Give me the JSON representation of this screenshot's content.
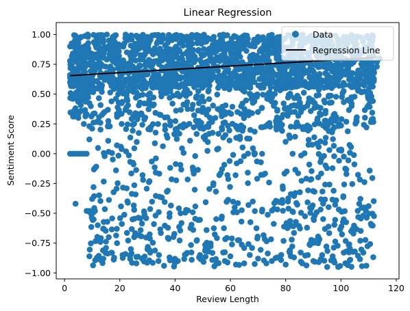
{
  "chart_data": {
    "type": "scatter",
    "title": "Linear Regression",
    "xlabel": "Review Length",
    "ylabel": "Sentiment Score",
    "xlim": [
      -3,
      121
    ],
    "ylim": [
      -1.05,
      1.1
    ],
    "xticks": [
      0,
      20,
      40,
      60,
      80,
      100,
      120
    ],
    "xtick_labels": [
      "0",
      "20",
      "40",
      "60",
      "80",
      "100",
      "120"
    ],
    "yticks": [
      -1.0,
      -0.75,
      -0.5,
      -0.25,
      0.0,
      0.25,
      0.5,
      0.75,
      1.0
    ],
    "ytick_labels": [
      "−1.00",
      "−0.75",
      "−0.50",
      "−0.25",
      "0.00",
      "0.25",
      "0.50",
      "0.75",
      "1.00"
    ],
    "grid": false,
    "legend_position": "top-right",
    "series": [
      {
        "name": "Data",
        "kind": "scatter",
        "color": "#1f77b4",
        "points": [
          [
            2,
            0.0
          ],
          [
            3,
            0.0
          ],
          [
            4,
            0.0
          ],
          [
            5,
            0.0
          ],
          [
            6,
            0.0
          ],
          [
            7,
            0.0
          ],
          [
            8,
            0.0
          ],
          [
            2,
            0.66
          ],
          [
            2,
            0.6
          ],
          [
            3,
            0.72
          ],
          [
            3,
            0.84
          ],
          [
            3,
            0.46
          ],
          [
            4,
            0.88
          ],
          [
            4,
            -0.42
          ],
          [
            5,
            0.93
          ],
          [
            5,
            0.3
          ],
          [
            6,
            0.36
          ],
          [
            7,
            0.25
          ],
          [
            8,
            -0.48
          ],
          [
            9,
            -0.48
          ],
          [
            9,
            -0.86
          ],
          [
            9,
            0.12
          ],
          [
            10,
            0.21
          ],
          [
            10,
            -0.38
          ],
          [
            11,
            -0.48
          ],
          [
            11,
            -0.12
          ],
          [
            12,
            -0.6
          ],
          [
            13,
            -0.74
          ],
          [
            14,
            -0.63
          ],
          [
            15,
            -0.79
          ],
          [
            16,
            -0.7
          ],
          [
            17,
            -0.83
          ],
          [
            19,
            -0.75
          ],
          [
            21,
            -0.85
          ],
          [
            24,
            -0.8
          ],
          [
            26,
            -0.92
          ],
          [
            28,
            -0.88
          ],
          [
            31,
            -0.83
          ],
          [
            34,
            -0.9
          ],
          [
            36,
            -0.94
          ],
          [
            38,
            -0.87
          ],
          [
            41,
            -0.9
          ],
          [
            44,
            -0.84
          ],
          [
            46,
            -0.89
          ],
          [
            49,
            -0.85
          ],
          [
            52,
            -0.82
          ],
          [
            55,
            -0.92
          ],
          [
            58,
            -0.9
          ],
          [
            60,
            -0.86
          ],
          [
            62,
            -0.93
          ],
          [
            65,
            -0.92
          ],
          [
            67,
            -0.85
          ],
          [
            70,
            -0.88
          ],
          [
            73,
            -0.92
          ],
          [
            75,
            -0.9
          ],
          [
            77,
            -0.87
          ],
          [
            80,
            -0.93
          ],
          [
            83,
            -0.87
          ],
          [
            86,
            -0.92
          ],
          [
            88,
            -0.85
          ],
          [
            90,
            -0.9
          ],
          [
            93,
            -0.89
          ],
          [
            95,
            -0.95
          ],
          [
            97,
            -0.86
          ],
          [
            99,
            -0.95
          ],
          [
            101,
            -0.83
          ],
          [
            103,
            -0.76
          ],
          [
            105,
            -0.82
          ],
          [
            107,
            -0.73
          ],
          [
            108,
            -0.52
          ],
          [
            109,
            -0.48
          ],
          [
            110,
            -0.44
          ],
          [
            111,
            -0.6
          ],
          [
            111,
            0.48
          ],
          [
            112,
            0.68
          ],
          [
            113,
            0.73
          ],
          [
            113,
            0.77
          ],
          [
            114,
            0.8
          ],
          [
            11,
            0.92
          ],
          [
            14,
            0.96
          ],
          [
            18,
            0.98
          ],
          [
            22,
            0.97
          ],
          [
            26,
            0.99
          ],
          [
            30,
            0.98
          ],
          [
            34,
            0.99
          ],
          [
            38,
            0.98
          ],
          [
            42,
            0.99
          ],
          [
            46,
            0.98
          ],
          [
            50,
            0.99
          ],
          [
            54,
            0.98
          ],
          [
            58,
            0.99
          ],
          [
            62,
            0.98
          ],
          [
            66,
            0.99
          ],
          [
            70,
            0.98
          ],
          [
            74,
            0.99
          ],
          [
            78,
            0.98
          ],
          [
            82,
            0.99
          ],
          [
            86,
            0.98
          ],
          [
            90,
            0.99
          ],
          [
            94,
            0.98
          ],
          [
            98,
            0.99
          ],
          [
            102,
            0.98
          ],
          [
            106,
            0.98
          ],
          [
            110,
            0.97
          ]
        ]
      },
      {
        "name": "Regression Line",
        "kind": "line",
        "color": "#000000",
        "points": [
          [
            2,
            0.655
          ],
          [
            113,
            0.808
          ]
        ]
      }
    ]
  },
  "legend": {
    "items": [
      {
        "label": "Data",
        "marker": "circle",
        "color": "#1f77b4"
      },
      {
        "label": "Regression Line",
        "marker": "line",
        "color": "#000000"
      }
    ]
  }
}
